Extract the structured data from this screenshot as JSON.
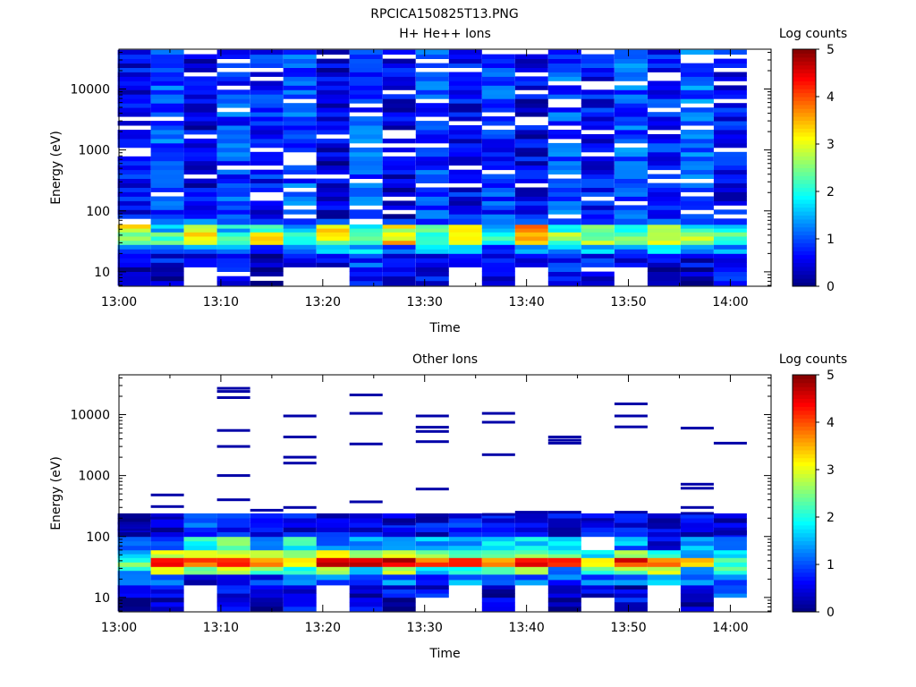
{
  "figure": {
    "title": "RPCICA150825T13.PNG"
  },
  "chart_data": [
    {
      "type": "heatmap",
      "title": "H+ He++ Ions",
      "xlabel": "Time",
      "ylabel": "Energy (eV)",
      "x_ticks": [
        "13:00",
        "13:10",
        "13:20",
        "13:30",
        "13:40",
        "13:50",
        "14:00"
      ],
      "y_ticks": [
        "10",
        "100",
        "1000",
        "10000"
      ],
      "y_scale": "log",
      "y_range_eV": [
        5.8,
        45000
      ],
      "x_range": [
        "13:00",
        "14:04"
      ],
      "time_bins": [
        "13:01:30",
        "13:04:45",
        "13:08:00",
        "13:11:15",
        "13:14:30",
        "13:17:45",
        "13:21:00",
        "13:24:15",
        "13:27:30",
        "13:30:45",
        "13:34:00",
        "13:37:15",
        "13:40:30",
        "13:43:45",
        "13:47:00",
        "13:50:15",
        "13:53:30",
        "13:56:45",
        "14:00:00"
      ],
      "energy_bands_eV": [
        {
          "band": "6-12",
          "log_counts": [
            0.3,
            0.1,
            null,
            0.6,
            0.2,
            null,
            null,
            0.8,
            0.4,
            0.5,
            null,
            0.4,
            null,
            0.8,
            0.5,
            null,
            0.2,
            0.3,
            0.7
          ]
        },
        {
          "band": "12-20",
          "log_counts": [
            0.4,
            0.6,
            0.5,
            0.7,
            0.3,
            0.6,
            0.4,
            0.9,
            0.7,
            0.6,
            0.5,
            0.6,
            0.4,
            0.9,
            0.6,
            0.5,
            0.4,
            0.5,
            0.8
          ]
        },
        {
          "band": "20-28",
          "log_counts": [
            1.0,
            1.2,
            1.3,
            1.5,
            1.0,
            1.1,
            1.4,
            1.6,
            1.2,
            1.5,
            1.3,
            1.0,
            1.2,
            1.4,
            1.5,
            1.3,
            1.6,
            1.4,
            1.2
          ]
        },
        {
          "band": "28-45",
          "log_counts": [
            2.6,
            2.2,
            3.4,
            2.1,
            3.1,
            1.8,
            2.8,
            2.0,
            3.3,
            2.4,
            3.2,
            1.9,
            3.7,
            2.5,
            2.7,
            2.3,
            3.2,
            2.6,
            2.4
          ]
        },
        {
          "band": "45-60",
          "log_counts": [
            3.1,
            1.5,
            2.9,
            1.7,
            2.3,
            1.4,
            3.2,
            1.9,
            3.0,
            2.5,
            3.1,
            1.8,
            3.8,
            2.0,
            2.2,
            1.9,
            3.0,
            2.1,
            1.7
          ]
        },
        {
          "band": "60-75",
          "log_counts": [
            null,
            1.2,
            1.4,
            1.0,
            0.9,
            0.8,
            1.1,
            null,
            1.0,
            0.7,
            0.9,
            1.2,
            1.1,
            0.9,
            0.8,
            1.0,
            1.2,
            0.9,
            0.8
          ]
        },
        {
          "band": "75-44000",
          "log_counts": [
            0.6,
            1.0,
            0.5,
            0.9,
            0.7,
            1.0,
            0.4,
            1.0,
            0.5,
            0.9,
            0.6,
            0.9,
            0.5,
            1.0,
            0.6,
            1.0,
            0.7,
            1.1,
            0.6
          ]
        }
      ],
      "colorbar": {
        "label": "Log counts",
        "ticks": [
          "0",
          "1",
          "2",
          "3",
          "4",
          "5"
        ],
        "range": [
          0,
          5
        ]
      }
    },
    {
      "type": "heatmap",
      "title": "Other Ions",
      "xlabel": "Time",
      "ylabel": "Energy (eV)",
      "x_ticks": [
        "13:00",
        "13:10",
        "13:20",
        "13:30",
        "13:40",
        "13:50",
        "14:00"
      ],
      "y_ticks": [
        "10",
        "100",
        "1000",
        "10000"
      ],
      "y_scale": "log",
      "y_range_eV": [
        5.8,
        45000
      ],
      "x_range": [
        "13:00",
        "14:04"
      ],
      "time_bins": [
        "13:01:30",
        "13:04:45",
        "13:08:00",
        "13:11:15",
        "13:14:30",
        "13:17:45",
        "13:21:00",
        "13:24:15",
        "13:27:30",
        "13:30:45",
        "13:34:00",
        "13:37:15",
        "13:40:30",
        "13:43:45",
        "13:47:00",
        "13:50:15",
        "13:53:30",
        "13:56:45",
        "14:00:00"
      ],
      "energy_bands_eV": [
        {
          "band": "6-10",
          "log_counts": [
            0.2,
            0.3,
            null,
            0.3,
            0.2,
            0.6,
            null,
            0.6,
            0.3,
            null,
            null,
            0.3,
            null,
            0.3,
            null,
            0.6,
            null,
            0.3,
            null
          ]
        },
        {
          "band": "10-16",
          "log_counts": [
            0.5,
            0.6,
            null,
            0.5,
            0.4,
            0.5,
            null,
            0.3,
            0.5,
            0.6,
            null,
            0.4,
            null,
            0.5,
            0.5,
            0.4,
            null,
            0.5,
            0.9
          ]
        },
        {
          "band": "16-24",
          "log_counts": [
            0.9,
            1.0,
            0.6,
            0.9,
            0.8,
            1.0,
            1.2,
            0.9,
            1.1,
            1.0,
            1.3,
            0.9,
            1.1,
            1.0,
            1.2,
            1.1,
            1.4,
            1.0,
            1.2
          ]
        },
        {
          "band": "24-32",
          "log_counts": [
            1.6,
            3.0,
            2.5,
            2.7,
            2.4,
            2.2,
            2.8,
            1.9,
            2.9,
            1.5,
            2.3,
            1.9,
            2.7,
            1.4,
            2.3,
            2.4,
            2.6,
            1.7,
            2.1
          ]
        },
        {
          "band": "32-45",
          "log_counts": [
            2.4,
            4.6,
            3.9,
            4.2,
            3.5,
            3.3,
            4.3,
            4.5,
            4.4,
            4.0,
            4.1,
            3.6,
            4.4,
            4.5,
            3.2,
            4.3,
            3.7,
            3.4,
            2.3
          ]
        },
        {
          "band": "45-60",
          "log_counts": [
            1.8,
            3.1,
            2.6,
            3.0,
            2.8,
            2.2,
            2.9,
            2.6,
            2.7,
            2.5,
            2.3,
            2.2,
            2.6,
            2.4,
            1.7,
            2.5,
            2.1,
            1.6,
            1.4
          ]
        },
        {
          "band": "60-100",
          "log_counts": [
            1.0,
            1.2,
            2.0,
            2.2,
            1.5,
            1.9,
            1.4,
            1.3,
            1.6,
            1.4,
            1.5,
            1.7,
            1.9,
            1.6,
            null,
            1.3,
            0.6,
            1.3,
            0.9
          ]
        },
        {
          "band": "100-240",
          "log_counts": [
            0.4,
            0.5,
            0.9,
            0.7,
            0.5,
            0.6,
            0.6,
            0.6,
            0.5,
            0.5,
            0.7,
            0.6,
            0.5,
            0.5,
            0.5,
            0.6,
            0.5,
            0.6,
            0.5
          ]
        }
      ],
      "sparse_high_energy_counts_eV": [
        {
          "time": "13:01:30",
          "energies": [
            165,
            130
          ]
        },
        {
          "time": "13:04:45",
          "energies": [
            480,
            310,
            200
          ]
        },
        {
          "time": "13:11:15",
          "energies": [
            27000,
            24000,
            19000,
            5500,
            3000,
            1000,
            400
          ]
        },
        {
          "time": "13:14:30",
          "energies": [
            270
          ]
        },
        {
          "time": "13:17:45",
          "energies": [
            9500,
            4300,
            2000,
            1600,
            300
          ]
        },
        {
          "time": "13:24:15",
          "energies": [
            21000,
            10500,
            3300,
            370
          ]
        },
        {
          "time": "13:27:30",
          "energies": [
            160
          ]
        },
        {
          "time": "13:30:45",
          "energies": [
            9500,
            6200,
            5300,
            3600,
            600,
            220
          ]
        },
        {
          "time": "13:37:15",
          "energies": [
            10500,
            7500,
            2200,
            230
          ]
        },
        {
          "time": "13:40:30",
          "energies": [
            250
          ]
        },
        {
          "time": "13:43:45",
          "energies": [
            4300,
            3800,
            3400,
            250
          ]
        },
        {
          "time": "13:47:00",
          "energies": [
            190
          ]
        },
        {
          "time": "13:50:15",
          "energies": [
            15000,
            9500,
            6300,
            250
          ]
        },
        {
          "time": "13:53:30",
          "energies": [
            140
          ]
        },
        {
          "time": "13:56:45",
          "energies": [
            6000,
            720,
            620,
            300,
            240
          ]
        },
        {
          "time": "14:00:00",
          "energies": [
            3400,
            120,
            110
          ]
        }
      ],
      "colorbar": {
        "label": "Log counts",
        "ticks": [
          "0",
          "1",
          "2",
          "3",
          "4",
          "5"
        ],
        "range": [
          0,
          5
        ]
      }
    }
  ]
}
